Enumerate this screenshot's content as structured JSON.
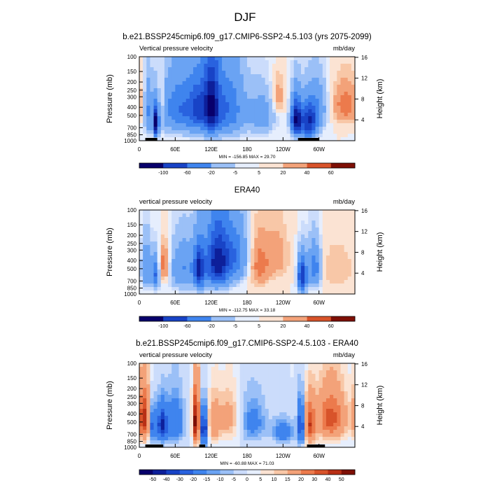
{
  "page": {
    "title": "DJF"
  },
  "axes": {
    "left_label": "Pressure (mb)",
    "right_label": "Height (km)",
    "pressure_ticks": [
      "100",
      "150",
      "200",
      "250",
      "300",
      "400",
      "500",
      "700",
      "850",
      "1000"
    ],
    "height_ticks": [
      "16",
      "12",
      "8",
      "4"
    ],
    "lon_ticks": [
      "0",
      "60E",
      "120E",
      "180",
      "120W",
      "60W"
    ]
  },
  "colors": {
    "bwr": [
      "#08006b",
      "#0d1f9a",
      "#1843c6",
      "#2962df",
      "#3f84ee",
      "#6aa3f3",
      "#9bc0f7",
      "#cbdcfb",
      "#e6eefd",
      "#fbe3d3",
      "#f8c7a7",
      "#f3a279",
      "#ec7a4c",
      "#d8532a",
      "#b82f15",
      "#7e0f05"
    ]
  },
  "chart_data": [
    {
      "type": "heatmap",
      "title": "b.e21.BSSP245cmip6.f09_g17.CMIP6-SSP2-4.5.103 (yrs 2075-2099)",
      "left_string": "Vertical pressure velocity",
      "right_string": "mb/day",
      "stats": "MIN = -156.85  MAX = 29.70",
      "min": -156.85,
      "max": 29.7,
      "x_range": [
        0,
        360
      ],
      "y_range_mb": [
        1000,
        100
      ],
      "colorbar_labels": [
        "-100",
        "-60",
        "-20",
        "-5",
        "5",
        "20",
        "40",
        "60"
      ],
      "levels": [
        -120,
        -100,
        -80,
        -60,
        -40,
        -20,
        -10,
        -5,
        0,
        5,
        10,
        20,
        30,
        40,
        60
      ],
      "features": [
        {
          "lon": 15,
          "p": 450,
          "v": -40,
          "w": 5,
          "h": 300
        },
        {
          "lon": 28,
          "p": 620,
          "v": -130,
          "w": 3,
          "h": 240
        },
        {
          "lon": 37,
          "p": 350,
          "v": 22,
          "w": 3,
          "h": 220
        },
        {
          "lon": 72,
          "p": 420,
          "v": -60,
          "w": 26,
          "h": 330
        },
        {
          "lon": 98,
          "p": 420,
          "v": -45,
          "w": 10,
          "h": 300
        },
        {
          "lon": 120,
          "p": 380,
          "v": -90,
          "w": 9,
          "h": 380
        },
        {
          "lon": 145,
          "p": 420,
          "v": -60,
          "w": 22,
          "h": 380
        },
        {
          "lon": 205,
          "p": 500,
          "v": -30,
          "w": 15,
          "h": 300
        },
        {
          "lon": 232,
          "p": 300,
          "v": 18,
          "w": 7,
          "h": 150
        },
        {
          "lon": 262,
          "p": 560,
          "v": -120,
          "w": 6,
          "h": 280
        },
        {
          "lon": 283,
          "p": 600,
          "v": -100,
          "w": 10,
          "h": 300
        },
        {
          "lon": 300,
          "p": 400,
          "v": -30,
          "w": 10,
          "h": 260
        },
        {
          "lon": 345,
          "p": 380,
          "v": 28,
          "w": 15,
          "h": 200
        }
      ],
      "topography": [
        [
          10,
          30
        ],
        [
          38,
          40
        ],
        [
          265,
          300
        ]
      ]
    },
    {
      "type": "heatmap",
      "title": "ERA40",
      "left_string": "vertical pressure velocity",
      "right_string": "mb/day",
      "stats": "MIN = -112.75  MAX = 33.18",
      "min": -112.75,
      "max": 33.18,
      "x_range": [
        0,
        360
      ],
      "y_range_mb": [
        1000,
        100
      ],
      "colorbar_labels": [
        "-100",
        "-60",
        "-20",
        "-5",
        "5",
        "20",
        "40",
        "60"
      ],
      "levels": [
        -120,
        -100,
        -80,
        -60,
        -40,
        -20,
        -10,
        -5,
        0,
        5,
        10,
        20,
        30,
        40,
        60
      ],
      "features": [
        {
          "lon": 12,
          "p": 500,
          "v": -45,
          "w": 6,
          "h": 300
        },
        {
          "lon": 27,
          "p": 580,
          "v": -60,
          "w": 4,
          "h": 250
        },
        {
          "lon": 42,
          "p": 450,
          "v": 33,
          "w": 6,
          "h": 220
        },
        {
          "lon": 75,
          "p": 500,
          "v": -40,
          "w": 18,
          "h": 330
        },
        {
          "lon": 100,
          "p": 520,
          "v": -90,
          "w": 6,
          "h": 300
        },
        {
          "lon": 130,
          "p": 420,
          "v": -112,
          "w": 14,
          "h": 340
        },
        {
          "lon": 160,
          "p": 350,
          "v": -50,
          "w": 15,
          "h": 300
        },
        {
          "lon": 200,
          "p": 450,
          "v": 25,
          "w": 12,
          "h": 300
        },
        {
          "lon": 230,
          "p": 350,
          "v": 15,
          "w": 14,
          "h": 250
        },
        {
          "lon": 272,
          "p": 620,
          "v": -100,
          "w": 5,
          "h": 280
        },
        {
          "lon": 292,
          "p": 500,
          "v": -55,
          "w": 8,
          "h": 280
        },
        {
          "lon": 330,
          "p": 500,
          "v": 10,
          "w": 20,
          "h": 300
        }
      ],
      "topography": []
    },
    {
      "type": "heatmap",
      "title": "b.e21.BSSP245cmip6.f09_g17.CMIP6-SSP2-4.5.103 - ERA40",
      "left_string": "vertical pressure velocity",
      "right_string": "mb/day",
      "stats": "MIN = -60.88  MAX = 71.03",
      "min": -60.88,
      "max": 71.03,
      "x_range": [
        0,
        360
      ],
      "y_range_mb": [
        1000,
        100
      ],
      "colorbar_labels": [
        "-50",
        "-40",
        "-30",
        "-20",
        "-15",
        "-10",
        "-5",
        "0",
        "5",
        "10",
        "15",
        "20",
        "30",
        "40",
        "50"
      ],
      "levels": [
        -60,
        -50,
        -40,
        -30,
        -20,
        -15,
        -10,
        -5,
        0,
        5,
        10,
        15,
        20,
        30,
        40,
        50,
        60
      ],
      "features": [
        {
          "lon": 8,
          "p": 450,
          "v": 55,
          "w": 7,
          "h": 320
        },
        {
          "lon": 22,
          "p": 550,
          "v": -40,
          "w": 4,
          "h": 260
        },
        {
          "lon": 38,
          "p": 550,
          "v": -55,
          "w": 6,
          "h": 260
        },
        {
          "lon": 60,
          "p": 500,
          "v": -30,
          "w": 10,
          "h": 300
        },
        {
          "lon": 95,
          "p": 480,
          "v": 71,
          "w": 4,
          "h": 360
        },
        {
          "lon": 108,
          "p": 600,
          "v": -60,
          "w": 4,
          "h": 300
        },
        {
          "lon": 125,
          "p": 500,
          "v": 25,
          "w": 8,
          "h": 300
        },
        {
          "lon": 150,
          "p": 450,
          "v": 20,
          "w": 12,
          "h": 300
        },
        {
          "lon": 190,
          "p": 500,
          "v": -20,
          "w": 15,
          "h": 300
        },
        {
          "lon": 240,
          "p": 650,
          "v": -25,
          "w": 12,
          "h": 200
        },
        {
          "lon": 270,
          "p": 550,
          "v": -50,
          "w": 4,
          "h": 300
        },
        {
          "lon": 285,
          "p": 550,
          "v": 45,
          "w": 6,
          "h": 320
        },
        {
          "lon": 320,
          "p": 450,
          "v": 45,
          "w": 18,
          "h": 320
        }
      ],
      "topography": [
        [
          10,
          40
        ],
        [
          100,
          110
        ],
        [
          280,
          310
        ]
      ]
    }
  ]
}
